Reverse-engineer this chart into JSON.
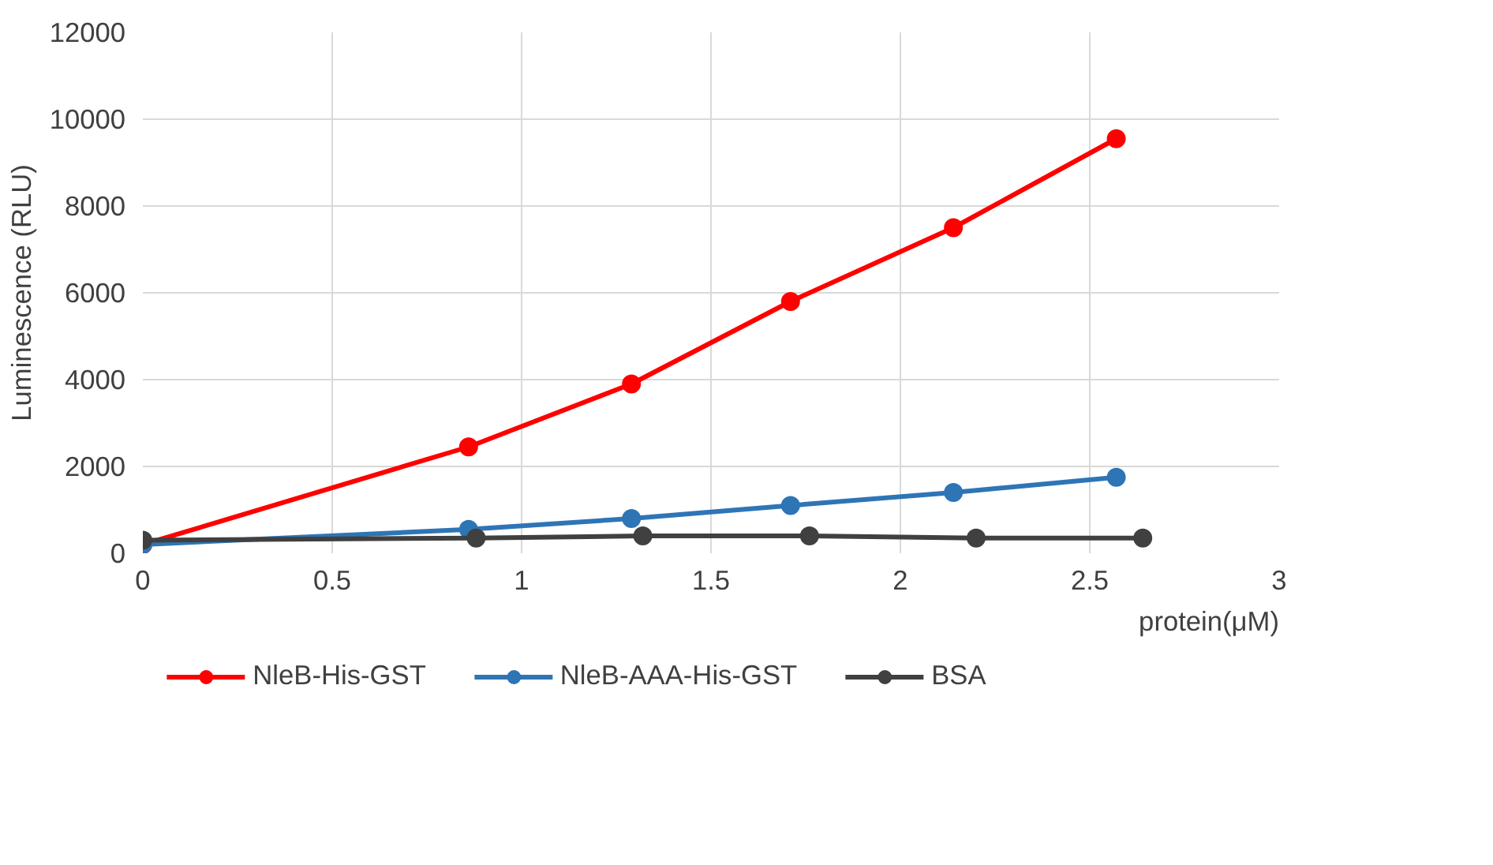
{
  "chart_data": {
    "type": "line",
    "xlabel": "protein(μM)",
    "ylabel": "Luminescence (RLU)",
    "xlim": [
      0,
      3
    ],
    "xticks": [
      0,
      0.5,
      1,
      1.5,
      2,
      2.5,
      3
    ],
    "ylim": [
      0,
      12000
    ],
    "yticks": [
      0,
      2000,
      4000,
      6000,
      8000,
      10000,
      12000
    ],
    "grid": true,
    "legend": "bottom",
    "marker": "circle",
    "line_style": "solid",
    "series": [
      {
        "name": "NleB-His-GST",
        "color": "#ff0000",
        "x": [
          0,
          0.86,
          1.29,
          1.71,
          2.14,
          2.57
        ],
        "values": [
          200,
          2450,
          3900,
          5800,
          7500,
          9550
        ]
      },
      {
        "name": "NleB-AAA-His-GST",
        "color": "#2e75b6",
        "x": [
          0,
          0.86,
          1.29,
          1.71,
          2.14,
          2.57
        ],
        "values": [
          200,
          550,
          800,
          1100,
          1400,
          1750
        ]
      },
      {
        "name": "BSA",
        "color": "#404040",
        "x": [
          0,
          0.88,
          1.32,
          1.76,
          2.2,
          2.64
        ],
        "values": [
          300,
          350,
          400,
          400,
          350,
          350
        ]
      }
    ]
  }
}
